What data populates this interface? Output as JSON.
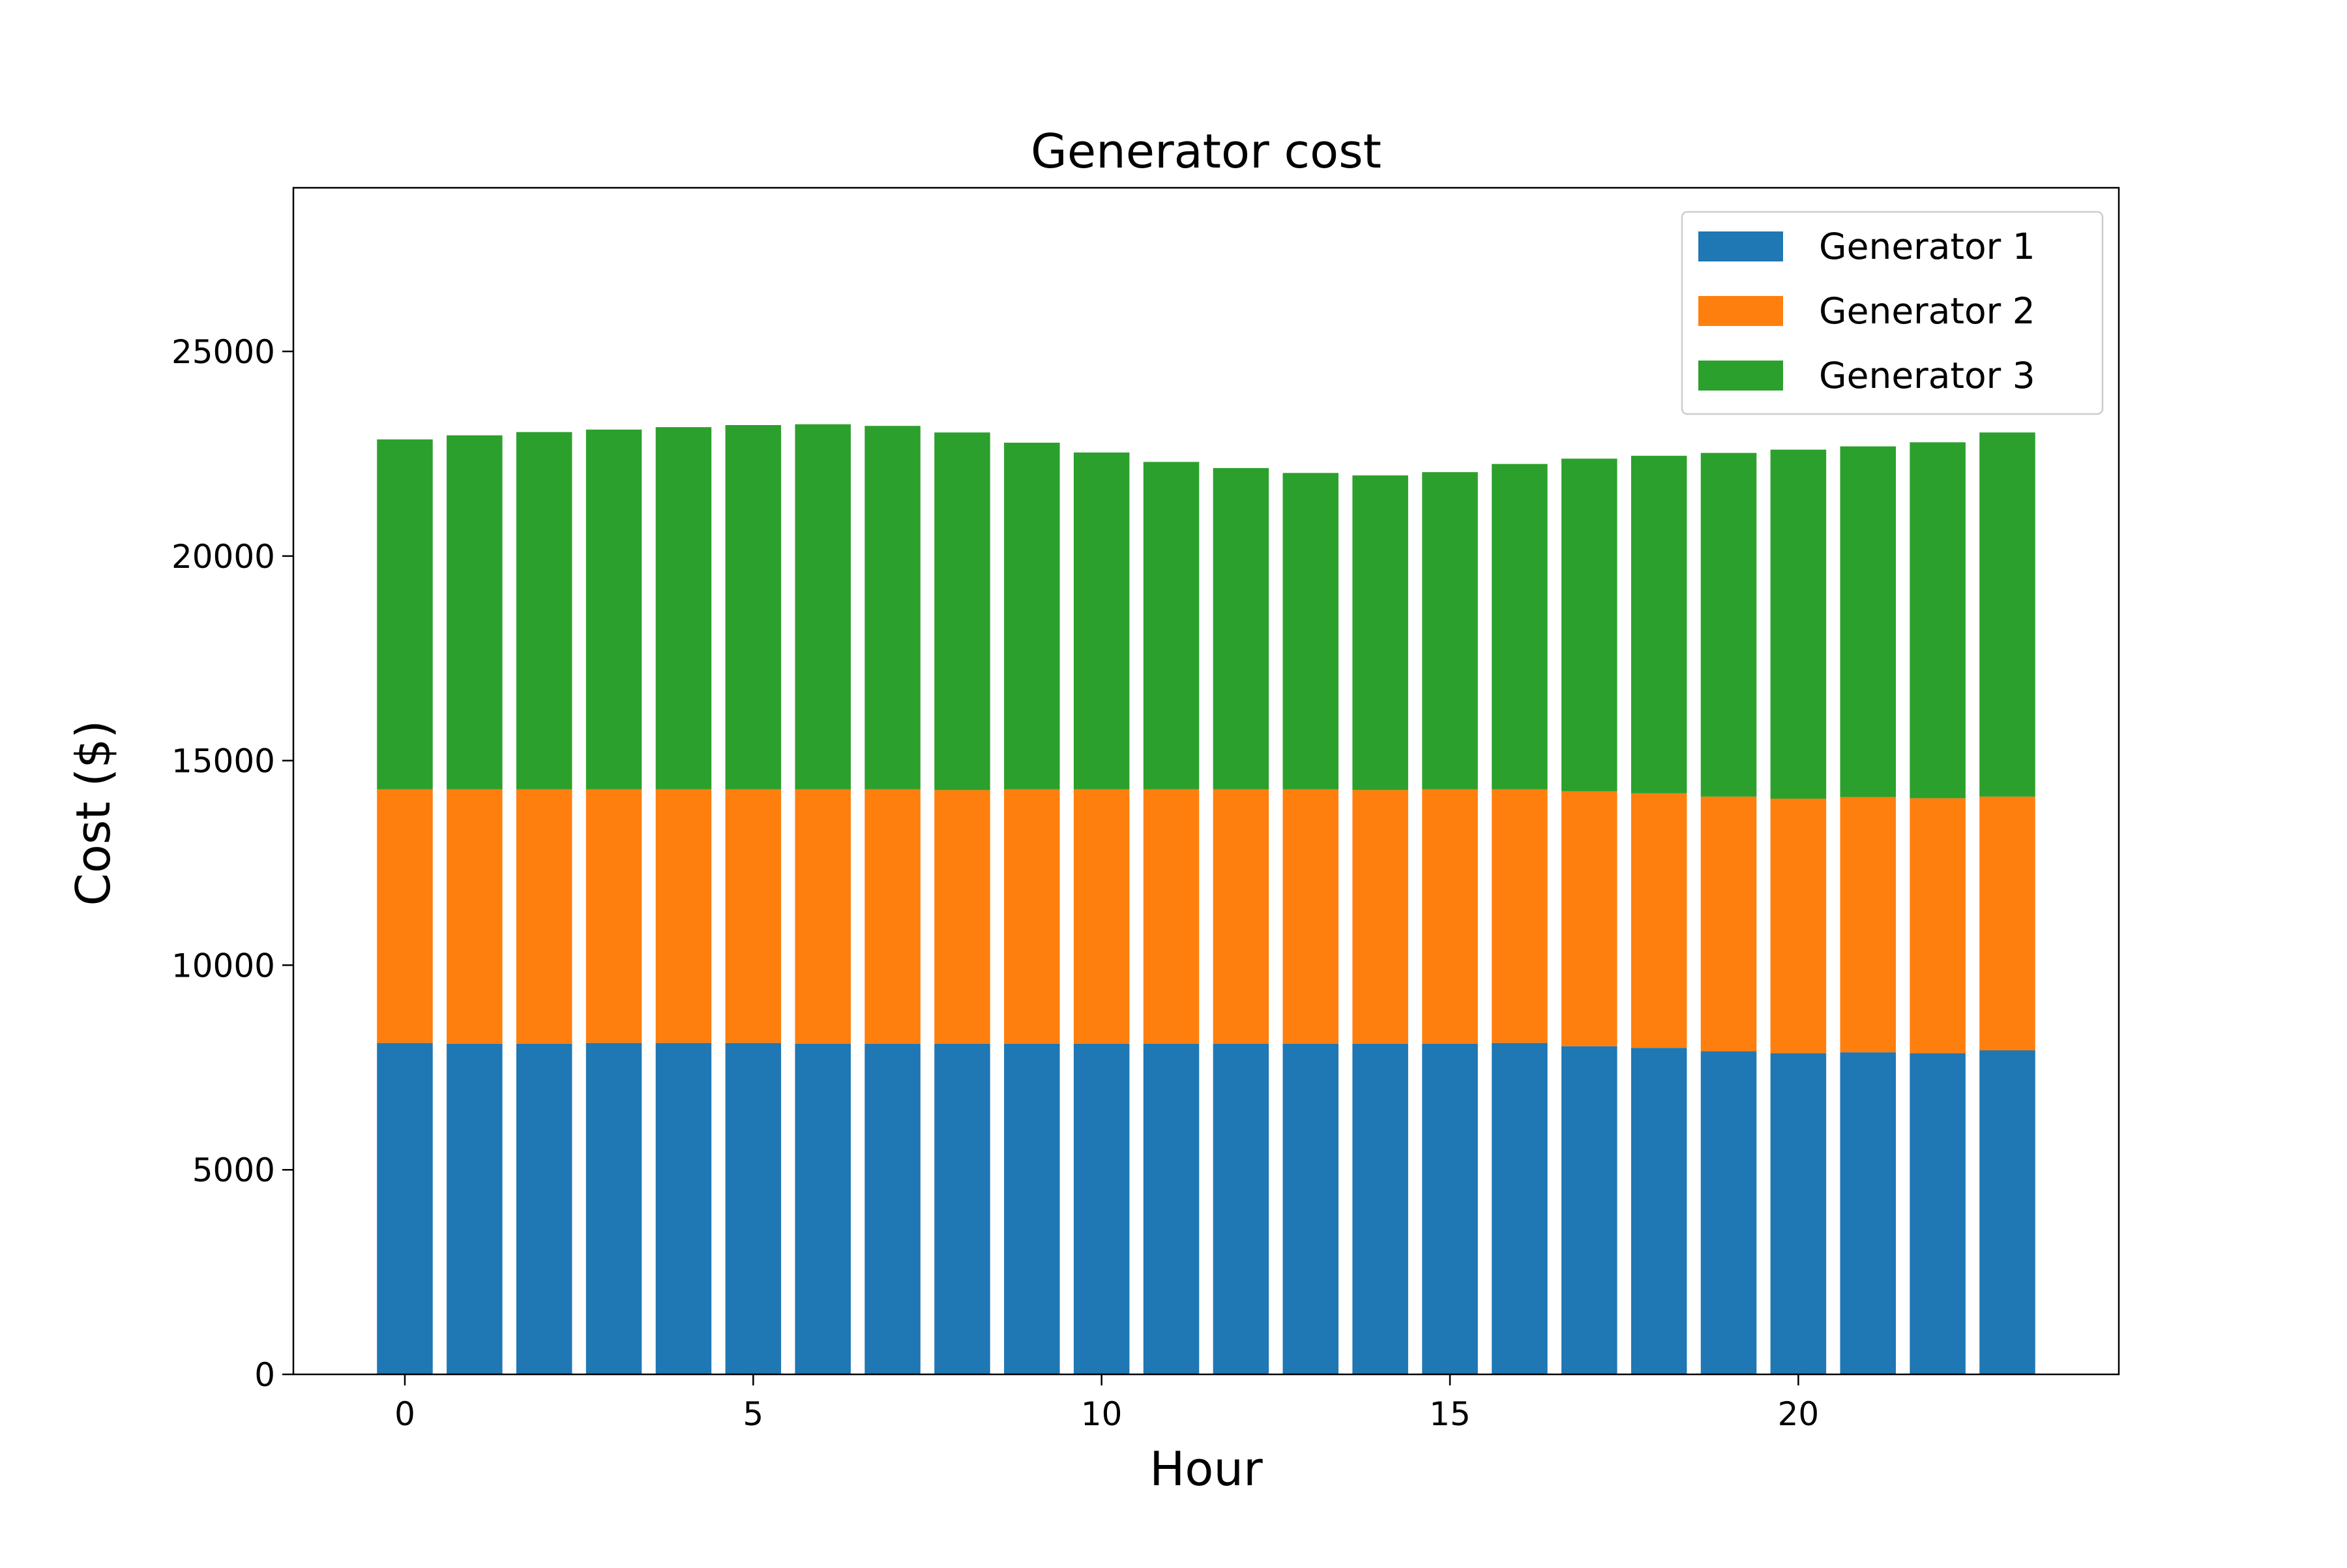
{
  "chart_data": {
    "type": "bar",
    "stacked": true,
    "title": "Generator cost",
    "xlabel": "Hour",
    "ylabel": "Cost ($)",
    "x": [
      0,
      1,
      2,
      3,
      4,
      5,
      6,
      7,
      8,
      9,
      10,
      11,
      12,
      13,
      14,
      15,
      16,
      17,
      18,
      19,
      20,
      21,
      22,
      23
    ],
    "xlim": [
      -1.6,
      24.6
    ],
    "ylim": [
      0,
      29000
    ],
    "x_ticks": [
      0,
      5,
      10,
      15,
      20
    ],
    "y_ticks": [
      0,
      5000,
      10000,
      15000,
      20000,
      25000
    ],
    "x_tick_labels": [
      "0",
      "5",
      "10",
      "15",
      "20"
    ],
    "y_tick_labels": [
      "0",
      "5000",
      "10000",
      "15000",
      "20000",
      "25000"
    ],
    "grid": false,
    "legend_position": "top-right",
    "series": [
      {
        "name": "Generator 1",
        "color": "#1f77b4",
        "values": [
          8100,
          8080,
          8080,
          8100,
          8100,
          8100,
          8080,
          8080,
          8080,
          8080,
          8080,
          8080,
          8080,
          8080,
          8080,
          8080,
          8100,
          8020,
          7980,
          7900,
          7850,
          7870,
          7850,
          7920
        ]
      },
      {
        "name": "Generator 2",
        "color": "#ff7f0e",
        "values": [
          6200,
          6220,
          6220,
          6200,
          6200,
          6200,
          6220,
          6220,
          6200,
          6220,
          6220,
          6220,
          6220,
          6220,
          6200,
          6220,
          6200,
          6230,
          6220,
          6220,
          6220,
          6240,
          6230,
          6200
        ]
      },
      {
        "name": "Generator 3",
        "color": "#2ca02c",
        "values": [
          8550,
          8650,
          8730,
          8790,
          8850,
          8900,
          8920,
          8880,
          8740,
          8470,
          8230,
          8000,
          7850,
          7730,
          7690,
          7750,
          7950,
          8130,
          8250,
          8400,
          8530,
          8570,
          8700,
          8900
        ]
      }
    ]
  }
}
